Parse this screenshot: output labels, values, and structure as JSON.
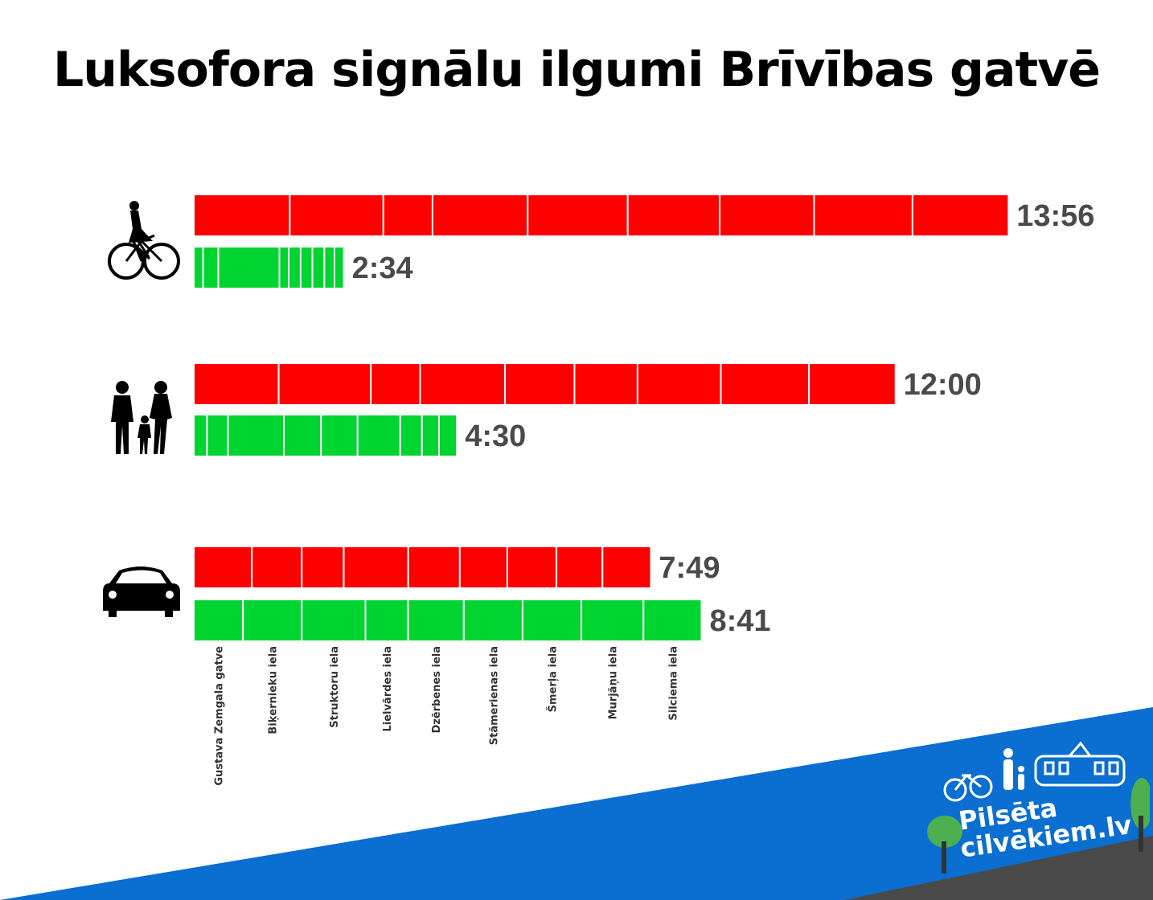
{
  "title": "Luksofora signālu ilgumi Brīvības gatvē",
  "colors": {
    "red": "#ff0000",
    "green": "#00d431",
    "blue_band": "#0a6fd0",
    "road": "#4a4a4a"
  },
  "chart_data": {
    "type": "bar",
    "unit": "minutes:seconds",
    "streets": [
      "Gustava Zemgala gatve",
      "Biķernieku iela",
      "Struktoru iela",
      "Lielvārdes iela",
      "Dzērbenes iela",
      "Stāmerienas iela",
      "Šmerļa iela",
      "Murjāņu iela",
      "Silciema iela"
    ],
    "groups": [
      {
        "icon": "cyclist-icon",
        "red_total": "13:56",
        "red_seconds": 836,
        "green_total": "2:34",
        "green_seconds": 154
      },
      {
        "icon": "pedestrian-family-icon",
        "red_total": "12:00",
        "red_seconds": 720,
        "green_total": "4:30",
        "green_seconds": 270
      },
      {
        "icon": "car-icon",
        "red_total": "7:49",
        "red_seconds": 469,
        "green_total": "8:41",
        "green_seconds": 521
      }
    ]
  },
  "brand": {
    "line1": "Pilsēta",
    "line2": "cilvēkiem.lv"
  }
}
